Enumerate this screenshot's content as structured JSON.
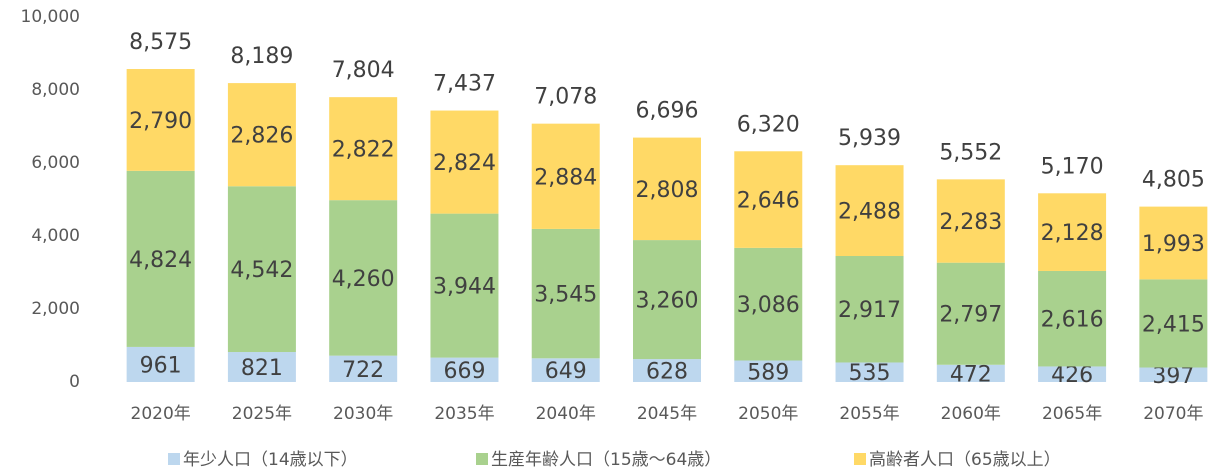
{
  "chart_data": {
    "type": "stacked_bar",
    "categories": [
      "2020年",
      "2025年",
      "2030年",
      "2035年",
      "2040年",
      "2045年",
      "2050年",
      "2055年",
      "2060年",
      "2065年",
      "2070年"
    ],
    "series": [
      {
        "name": "年少人口（14歳以下）",
        "color": "#bdd7ee",
        "values": [
          961,
          821,
          722,
          669,
          649,
          628,
          589,
          535,
          472,
          426,
          397
        ],
        "value_labels": [
          "961",
          "821",
          "722",
          "669",
          "649",
          "628",
          "589",
          "535",
          "472",
          "426",
          "397"
        ]
      },
      {
        "name": "生産年齢人口（15歳～64歳）",
        "color": "#a9d18e",
        "values": [
          4824,
          4542,
          4260,
          3944,
          3545,
          3260,
          3086,
          2917,
          2797,
          2616,
          2415
        ],
        "value_labels": [
          "4,824",
          "4,542",
          "4,260",
          "3,944",
          "3,545",
          "3,260",
          "3,086",
          "2,917",
          "2,797",
          "2,616",
          "2,415"
        ]
      },
      {
        "name": "高齢者人口（65歳以上）",
        "color": "#ffd966",
        "values": [
          2790,
          2826,
          2822,
          2824,
          2884,
          2808,
          2646,
          2488,
          2283,
          2128,
          1993
        ],
        "value_labels": [
          "2,790",
          "2,826",
          "2,822",
          "2,824",
          "2,884",
          "2,808",
          "2,646",
          "2,488",
          "2,283",
          "2,128",
          "1,993"
        ]
      }
    ],
    "totals": [
      8575,
      8189,
      7804,
      7437,
      7078,
      6696,
      6320,
      5939,
      5552,
      5170,
      4805
    ],
    "total_labels": [
      "8,575",
      "8,189",
      "7,804",
      "7,437",
      "7,078",
      "6,696",
      "6,320",
      "5,939",
      "5,552",
      "5,170",
      "4,805"
    ],
    "ylim": [
      0,
      10000
    ],
    "yticks": [
      0,
      {
        "value": 2000,
        "label": "2,000"
      },
      {
        "value": 4000,
        "label": "4,000"
      },
      {
        "value": 6000,
        "label": "6,000"
      },
      {
        "value": 8000,
        "label": "8,000"
      },
      {
        "value": 10000,
        "label": "10,000"
      }
    ],
    "grid": false,
    "legend": "bottom"
  }
}
